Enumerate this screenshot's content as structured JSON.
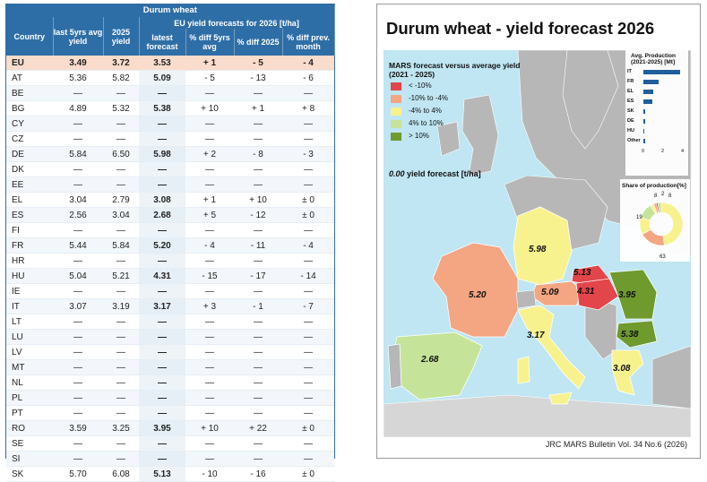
{
  "table": {
    "title": "Durum wheat",
    "subheader": "EU yield forecasts for 2026 [t/ha]",
    "columns": {
      "country": "Country",
      "avg5": "last 5yrs avg yield",
      "y2025": "2025 yield",
      "latest": "latest forecast",
      "d5": "% diff 5yrs avg",
      "d2025": "% diff 2025",
      "dprev": "% diff prev. month"
    },
    "rows": [
      {
        "c": "EU",
        "a": "3.49",
        "y": "3.72",
        "f": "3.53",
        "d5": "+ 1",
        "d25": "- 5",
        "dp": "- 4",
        "s5": "pos",
        "s25": "neg",
        "sp": "neg"
      },
      {
        "c": "AT",
        "a": "5.36",
        "y": "5.82",
        "f": "5.09",
        "d5": "- 5",
        "d25": "- 13",
        "dp": "- 6",
        "s5": "neg",
        "s25": "neg",
        "sp": "neg"
      },
      {
        "c": "BE",
        "a": "—",
        "y": "—",
        "f": "—",
        "d5": "—",
        "d25": "—",
        "dp": "—",
        "s5": "neu",
        "s25": "neu",
        "sp": "neu"
      },
      {
        "c": "BG",
        "a": "4.89",
        "y": "5.32",
        "f": "5.38",
        "d5": "+ 10",
        "d25": "+ 1",
        "dp": "+ 8",
        "s5": "pos",
        "s25": "pos",
        "sp": "pos"
      },
      {
        "c": "CY",
        "a": "—",
        "y": "—",
        "f": "—",
        "d5": "—",
        "d25": "—",
        "dp": "—",
        "s5": "neu",
        "s25": "neu",
        "sp": "neu"
      },
      {
        "c": "CZ",
        "a": "—",
        "y": "—",
        "f": "—",
        "d5": "—",
        "d25": "—",
        "dp": "—",
        "s5": "neu",
        "s25": "neu",
        "sp": "neu"
      },
      {
        "c": "DE",
        "a": "5.84",
        "y": "6.50",
        "f": "5.98",
        "d5": "+ 2",
        "d25": "- 8",
        "dp": "- 3",
        "s5": "pos",
        "s25": "neg",
        "sp": "neg"
      },
      {
        "c": "DK",
        "a": "—",
        "y": "—",
        "f": "—",
        "d5": "—",
        "d25": "—",
        "dp": "—",
        "s5": "neu",
        "s25": "neu",
        "sp": "neu"
      },
      {
        "c": "EE",
        "a": "—",
        "y": "—",
        "f": "—",
        "d5": "—",
        "d25": "—",
        "dp": "—",
        "s5": "neu",
        "s25": "neu",
        "sp": "neu"
      },
      {
        "c": "EL",
        "a": "3.04",
        "y": "2.79",
        "f": "3.08",
        "d5": "+ 1",
        "d25": "+ 10",
        "dp": "± 0",
        "s5": "pos",
        "s25": "pos",
        "sp": "neu"
      },
      {
        "c": "ES",
        "a": "2.56",
        "y": "3.04",
        "f": "2.68",
        "d5": "+ 5",
        "d25": "- 12",
        "dp": "± 0",
        "s5": "pos",
        "s25": "neg",
        "sp": "neu"
      },
      {
        "c": "FI",
        "a": "—",
        "y": "—",
        "f": "—",
        "d5": "—",
        "d25": "—",
        "dp": "—",
        "s5": "neu",
        "s25": "neu",
        "sp": "neu"
      },
      {
        "c": "FR",
        "a": "5.44",
        "y": "5.84",
        "f": "5.20",
        "d5": "- 4",
        "d25": "- 11",
        "dp": "- 4",
        "s5": "neg",
        "s25": "neg",
        "sp": "neg"
      },
      {
        "c": "HR",
        "a": "—",
        "y": "—",
        "f": "—",
        "d5": "—",
        "d25": "—",
        "dp": "—",
        "s5": "neu",
        "s25": "neu",
        "sp": "neu"
      },
      {
        "c": "HU",
        "a": "5.04",
        "y": "5.21",
        "f": "4.31",
        "d5": "- 15",
        "d25": "- 17",
        "dp": "- 14",
        "s5": "neg",
        "s25": "neg",
        "sp": "neg"
      },
      {
        "c": "IE",
        "a": "—",
        "y": "—",
        "f": "—",
        "d5": "—",
        "d25": "—",
        "dp": "—",
        "s5": "neu",
        "s25": "neu",
        "sp": "neu"
      },
      {
        "c": "IT",
        "a": "3.07",
        "y": "3.19",
        "f": "3.17",
        "d5": "+ 3",
        "d25": "- 1",
        "dp": "- 7",
        "s5": "pos",
        "s25": "neg",
        "sp": "neg"
      },
      {
        "c": "LT",
        "a": "—",
        "y": "—",
        "f": "—",
        "d5": "—",
        "d25": "—",
        "dp": "—",
        "s5": "neu",
        "s25": "neu",
        "sp": "neu"
      },
      {
        "c": "LU",
        "a": "—",
        "y": "—",
        "f": "—",
        "d5": "—",
        "d25": "—",
        "dp": "—",
        "s5": "neu",
        "s25": "neu",
        "sp": "neu"
      },
      {
        "c": "LV",
        "a": "—",
        "y": "—",
        "f": "—",
        "d5": "—",
        "d25": "—",
        "dp": "—",
        "s5": "neu",
        "s25": "neu",
        "sp": "neu"
      },
      {
        "c": "MT",
        "a": "—",
        "y": "—",
        "f": "—",
        "d5": "—",
        "d25": "—",
        "dp": "—",
        "s5": "neu",
        "s25": "neu",
        "sp": "neu"
      },
      {
        "c": "NL",
        "a": "—",
        "y": "—",
        "f": "—",
        "d5": "—",
        "d25": "—",
        "dp": "—",
        "s5": "neu",
        "s25": "neu",
        "sp": "neu"
      },
      {
        "c": "PL",
        "a": "—",
        "y": "—",
        "f": "—",
        "d5": "—",
        "d25": "—",
        "dp": "—",
        "s5": "neu",
        "s25": "neu",
        "sp": "neu"
      },
      {
        "c": "PT",
        "a": "—",
        "y": "—",
        "f": "—",
        "d5": "—",
        "d25": "—",
        "dp": "—",
        "s5": "neu",
        "s25": "neu",
        "sp": "neu"
      },
      {
        "c": "RO",
        "a": "3.59",
        "y": "3.25",
        "f": "3.95",
        "d5": "+ 10",
        "d25": "+ 22",
        "dp": "± 0",
        "s5": "pos",
        "s25": "pos",
        "sp": "neu"
      },
      {
        "c": "SE",
        "a": "—",
        "y": "—",
        "f": "—",
        "d5": "—",
        "d25": "—",
        "dp": "—",
        "s5": "neu",
        "s25": "neu",
        "sp": "neu"
      },
      {
        "c": "SI",
        "a": "—",
        "y": "—",
        "f": "—",
        "d5": "—",
        "d25": "—",
        "dp": "—",
        "s5": "neu",
        "s25": "neu",
        "sp": "neu"
      },
      {
        "c": "SK",
        "a": "5.70",
        "y": "6.08",
        "f": "5.13",
        "d5": "- 10",
        "d25": "- 16",
        "dp": "± 0",
        "s5": "neg",
        "s25": "neg",
        "sp": "neu"
      }
    ]
  },
  "map": {
    "title": "Durum wheat - yield forecast 2026",
    "legend_title": "MARS forecast versus average yield (2021 - 2025)",
    "legend": [
      {
        "label": "< -10%",
        "color": "#e2454a"
      },
      {
        "label": "-10% to -4%",
        "color": "#f4a582"
      },
      {
        "label": "-4% to 4%",
        "color": "#f7f28d"
      },
      {
        "label": "4% to 10%",
        "color": "#c5e49a"
      },
      {
        "label": "> 10%",
        "color": "#6e9a2e"
      }
    ],
    "forecast_note_value": "0.00",
    "forecast_note_text": "yield forecast [t/ha]",
    "country_values": [
      {
        "id": "DE",
        "val": "5.98"
      },
      {
        "id": "FR",
        "val": "5.20"
      },
      {
        "id": "AT",
        "val": "5.09"
      },
      {
        "id": "SK",
        "val": "5.13"
      },
      {
        "id": "HU",
        "val": "4.31"
      },
      {
        "id": "RO",
        "val": "3.95"
      },
      {
        "id": "BG",
        "val": "5.38"
      },
      {
        "id": "IT",
        "val": "3.17"
      },
      {
        "id": "ES",
        "val": "2.68"
      },
      {
        "id": "EL",
        "val": "3.08"
      }
    ],
    "avg_production": {
      "title": "Avg. Production (2021-2025) [Mt]",
      "categories": [
        "IT",
        "FR",
        "EL",
        "ES",
        "SK",
        "DE",
        "HU",
        "Other"
      ],
      "values": [
        3.7,
        1.5,
        1.0,
        0.9,
        0.2,
        0.15,
        0.1,
        0.2
      ],
      "ticks": [
        "0",
        "2",
        "4"
      ],
      "xlim": [
        0,
        4
      ]
    },
    "share": {
      "title": "Share of production[%]",
      "labels": [
        "8",
        "2",
        "8",
        "19",
        "63"
      ]
    },
    "footer": "JRC MARS Bulletin Vol. 34 No.6 (2026)"
  }
}
